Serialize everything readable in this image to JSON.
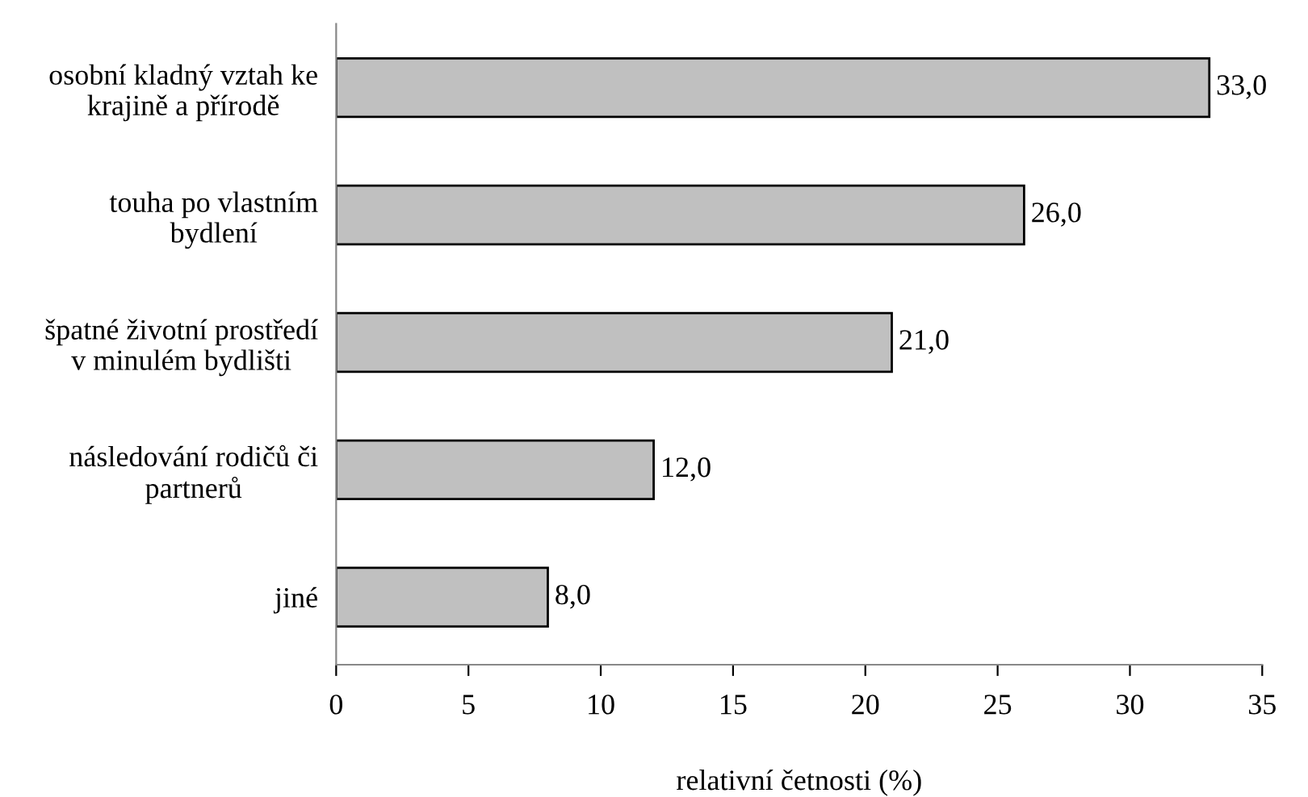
{
  "chart_data": {
    "type": "bar",
    "orientation": "horizontal",
    "xlabel": "relativní četnosti (%)",
    "categories": [
      "osobní kladný vztah ke\nkrajině a přírodě",
      "touha po vlastním\nbydlení",
      "špatné životní prostředí\nv minulém bydlišti",
      "následování rodičů či\npartnerů",
      "jiné"
    ],
    "values": [
      33.0,
      26.0,
      21.0,
      12.0,
      8.0
    ],
    "value_labels": [
      "33,0",
      "26,0",
      "21,0",
      "12,0",
      "8,0"
    ],
    "color": "#c0c0c0",
    "xlim": [
      0,
      35
    ],
    "xticks": [
      0,
      5,
      10,
      15,
      20,
      25,
      30,
      35
    ],
    "grid": false,
    "legend": false
  }
}
